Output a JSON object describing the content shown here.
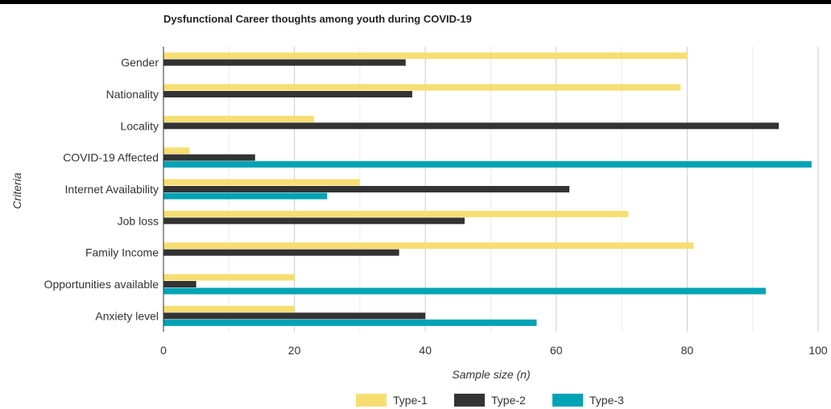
{
  "chart_data": {
    "type": "bar",
    "orientation": "horizontal",
    "title": "Dysfunctional Career thoughts among youth during COVID-19",
    "xlabel": "Sample size (n)",
    "ylabel": "Criteria",
    "xlim": [
      0,
      100
    ],
    "xticks": [
      "0",
      "20",
      "40",
      "60",
      "80",
      "100"
    ],
    "grid": true,
    "legend_position": "bottom",
    "categories": [
      "Gender",
      "Nationality",
      "Locality",
      "COVID-19 Affected",
      "Internet Availability",
      "Job loss",
      "Family Income",
      "Opportunities available",
      "Anxiety level"
    ],
    "series": [
      {
        "name": "Type-1",
        "color": "#f7de72",
        "values": [
          80,
          79,
          23,
          4,
          30,
          71,
          81,
          20,
          20
        ]
      },
      {
        "name": "Type-2",
        "color": "#333333",
        "values": [
          37,
          38,
          94,
          14,
          62,
          46,
          36,
          5,
          40
        ]
      },
      {
        "name": "Type-3",
        "color": "#00a3b5",
        "values": [
          0,
          0,
          0,
          99,
          25,
          0,
          0,
          92,
          57
        ]
      }
    ]
  }
}
